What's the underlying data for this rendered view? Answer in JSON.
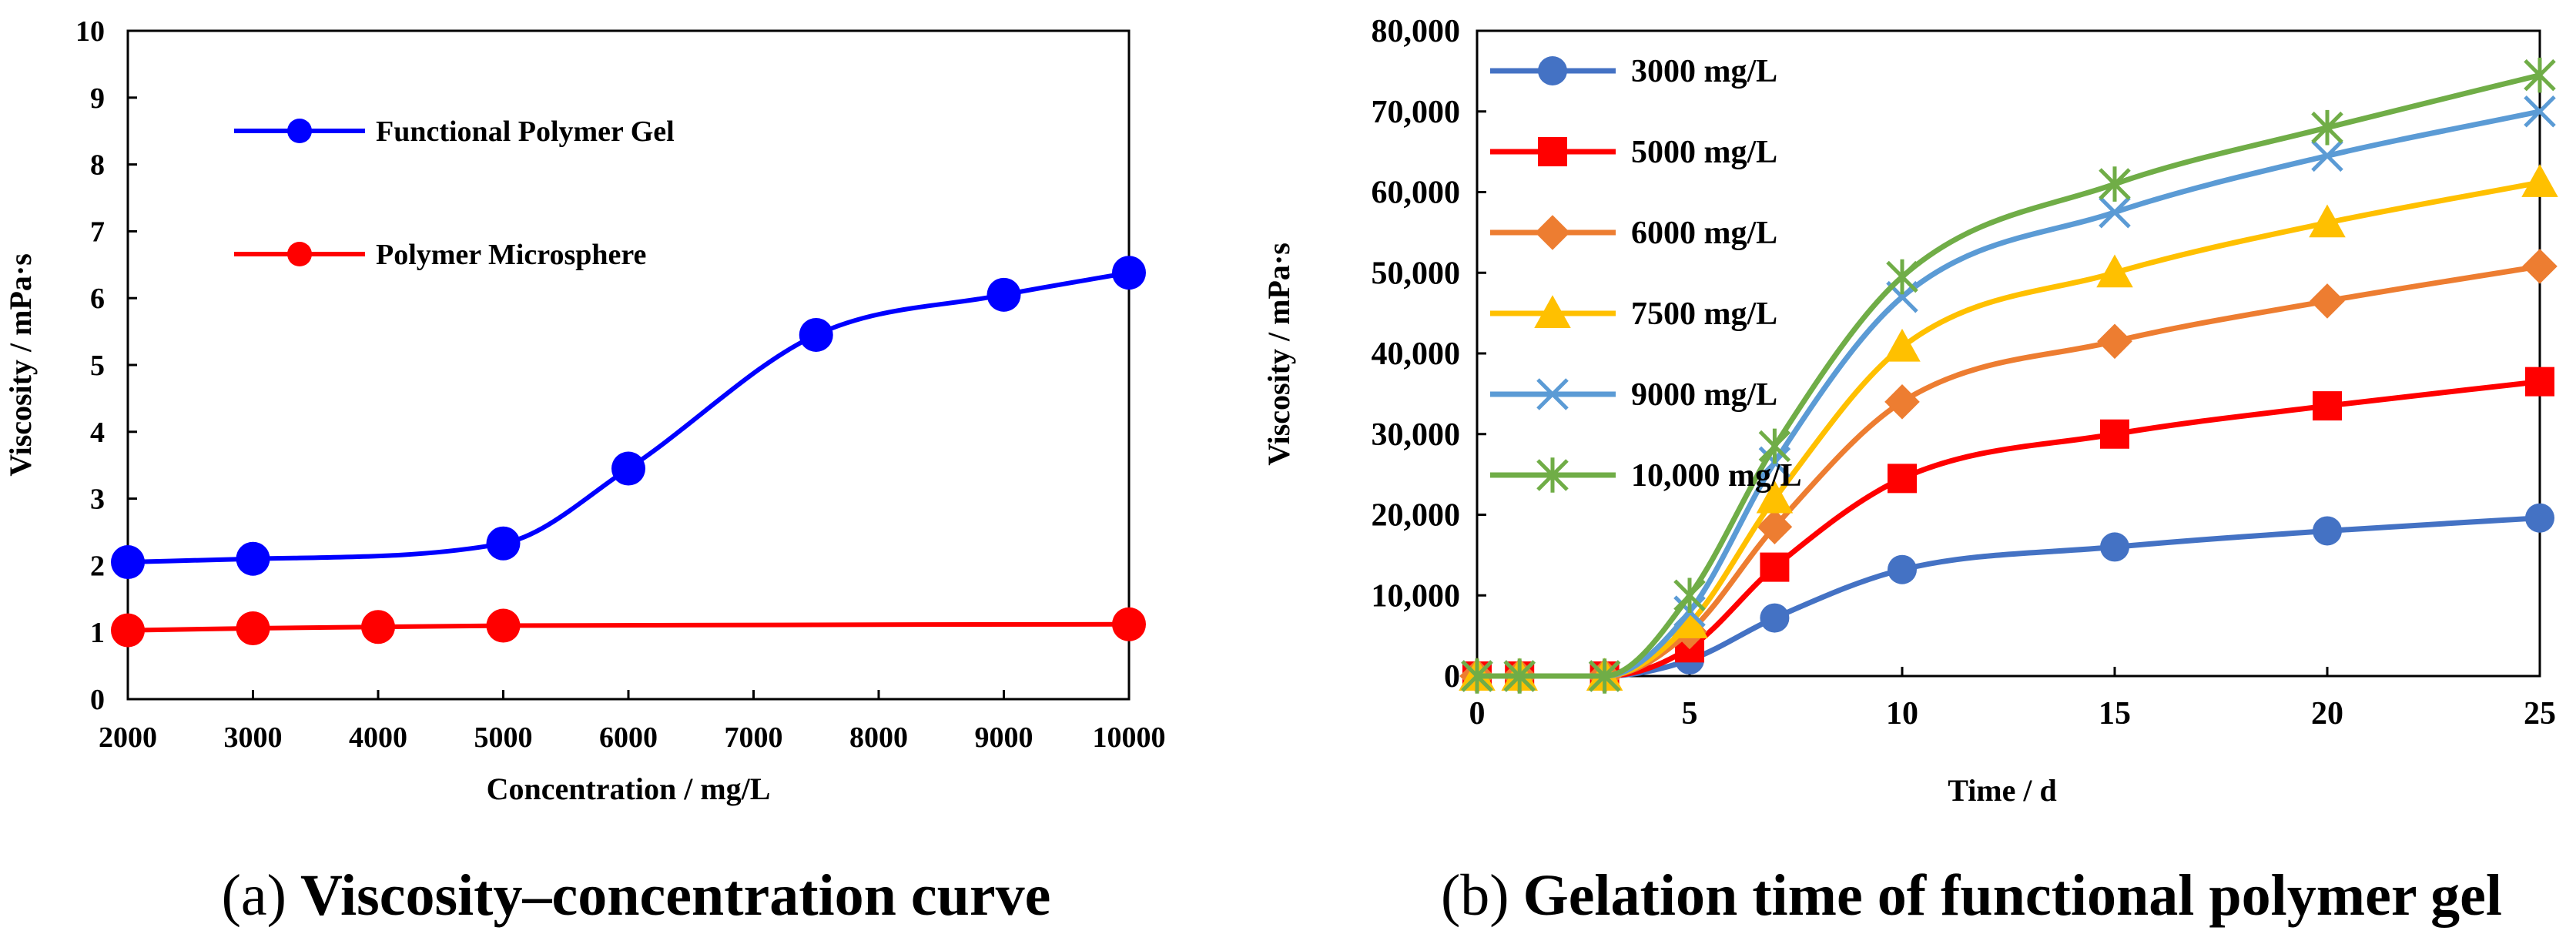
{
  "chart_data": [
    {
      "type": "line",
      "caption_label": "(a)",
      "caption_title": "Viscosity–concentration curve",
      "xlabel": "Concentration / mg/L",
      "ylabel": "Viscosity / mPa·s",
      "xlim": [
        2000,
        10000
      ],
      "ylim": [
        0,
        10
      ],
      "x_ticks": [
        "2000",
        "3000",
        "4000",
        "5000",
        "6000",
        "7000",
        "8000",
        "9000",
        "10000"
      ],
      "y_ticks": [
        "0",
        "1",
        "2",
        "3",
        "4",
        "5",
        "6",
        "7",
        "8",
        "9",
        "10"
      ],
      "legend_position": "top-left",
      "series": [
        {
          "name": "Functional Polymer Gel",
          "color": "#0000ff",
          "marker": "circle",
          "x": [
            2000,
            3000,
            5000,
            6000,
            7500,
            9000,
            10000
          ],
          "y": [
            2.05,
            2.1,
            2.33,
            3.45,
            5.45,
            6.05,
            6.38
          ]
        },
        {
          "name": "Polymer Microsphere",
          "color": "#ff0000",
          "marker": "circle",
          "x": [
            2000,
            3000,
            4000,
            5000,
            10000
          ],
          "y": [
            1.03,
            1.06,
            1.08,
            1.1,
            1.12
          ]
        }
      ]
    },
    {
      "type": "line",
      "caption_label": "(b)",
      "caption_title": "Gelation time of functional polymer gel",
      "xlabel": "Time / d",
      "ylabel": "Viscosity / mPa·s",
      "xlim": [
        0,
        25
      ],
      "ylim": [
        0,
        80000
      ],
      "x_ticks": [
        "0",
        "5",
        "10",
        "15",
        "20",
        "25"
      ],
      "y_ticks": [
        "0",
        "10,000",
        "20,000",
        "30,000",
        "40,000",
        "50,000",
        "60,000",
        "70,000",
        "80,000"
      ],
      "legend_position": "top-left",
      "series": [
        {
          "name": "3000 mg/L",
          "color": "#4472c4",
          "marker": "circle",
          "x": [
            0,
            1,
            3,
            5,
            7,
            10,
            15,
            20,
            25
          ],
          "y": [
            0,
            0,
            0,
            2000,
            7200,
            13200,
            16000,
            18000,
            19600
          ]
        },
        {
          "name": "5000 mg/L",
          "color": "#ff0000",
          "marker": "square",
          "x": [
            0,
            1,
            3,
            5,
            7,
            10,
            15,
            20,
            25
          ],
          "y": [
            0,
            0,
            0,
            3500,
            13500,
            24500,
            30000,
            33500,
            36500
          ]
        },
        {
          "name": "6000 mg/L",
          "color": "#ed7d31",
          "marker": "diamond",
          "x": [
            0,
            1,
            3,
            5,
            7,
            10,
            15,
            20,
            25
          ],
          "y": [
            0,
            0,
            0,
            5500,
            18500,
            34000,
            41500,
            46500,
            50800
          ]
        },
        {
          "name": "7500 mg/L",
          "color": "#ffc000",
          "marker": "triangle",
          "x": [
            0,
            1,
            3,
            5,
            7,
            10,
            15,
            20,
            25
          ],
          "y": [
            0,
            0,
            0,
            6500,
            22000,
            40800,
            50000,
            56200,
            61200
          ]
        },
        {
          "name": "9000 mg/L",
          "color": "#5b9bd5",
          "marker": "x",
          "x": [
            0,
            1,
            3,
            5,
            7,
            10,
            15,
            20,
            25
          ],
          "y": [
            0,
            0,
            0,
            8000,
            26500,
            47000,
            57500,
            64500,
            70000
          ]
        },
        {
          "name": "10,000 mg/L",
          "color": "#70ad47",
          "marker": "star",
          "x": [
            0,
            1,
            3,
            5,
            7,
            10,
            15,
            20,
            25
          ],
          "y": [
            0,
            0,
            0,
            10000,
            28500,
            49500,
            61000,
            68000,
            74500
          ]
        }
      ]
    }
  ]
}
